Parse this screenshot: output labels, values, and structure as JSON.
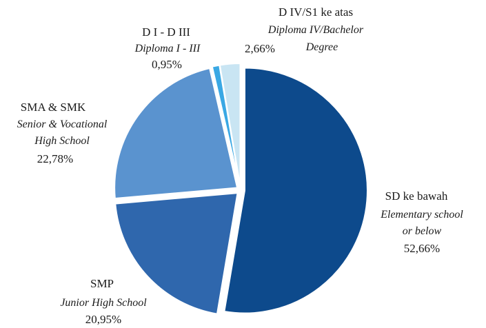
{
  "chart_data": {
    "type": "pie",
    "title": "",
    "slices": [
      {
        "label": "SD ke bawah",
        "sublabel_lines": [
          "Elementary school",
          "or below"
        ],
        "value": 52.66,
        "value_text": "52,66%",
        "color": "#0d4a8c"
      },
      {
        "label": "SMP",
        "sublabel_lines": [
          "Junior High School"
        ],
        "value": 20.95,
        "value_text": "20,95%",
        "color": "#2f67ad"
      },
      {
        "label": "SMA & SMK",
        "sublabel_lines": [
          "Senior & Vocational",
          "High School"
        ],
        "value": 22.78,
        "value_text": "22,78%",
        "color": "#5a93cf"
      },
      {
        "label": "D I - D III",
        "sublabel_lines": [
          "Diploma I - III"
        ],
        "value": 0.95,
        "value_text": "0,95%",
        "color": "#3aa8e4"
      },
      {
        "label": "D IV/S1 ke atas",
        "sublabel_lines": [
          "Diploma IV/Bachelor",
          "Degree"
        ],
        "value": 2.66,
        "value_text": "2,66%",
        "color": "#c9e5f3"
      }
    ],
    "legend": "none",
    "start": "12 o'clock",
    "direction": "clockwise",
    "exploded": true
  }
}
